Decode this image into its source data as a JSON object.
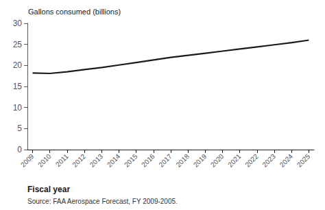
{
  "chart_data": {
    "type": "line",
    "ylabel": "Gallons consumed (billions)",
    "xlabel": "Fiscal year",
    "annotations": [
      "Source: FAA Aerospace Forecast, FY 2009-2005."
    ],
    "x": [
      2009,
      2010,
      2011,
      2012,
      2013,
      2014,
      2015,
      2016,
      2017,
      2018,
      2019,
      2020,
      2021,
      2022,
      2023,
      2024,
      2025
    ],
    "values": [
      18.2,
      18.1,
      18.5,
      19.0,
      19.5,
      20.1,
      20.7,
      21.3,
      21.9,
      22.4,
      22.9,
      23.4,
      23.9,
      24.4,
      24.9,
      25.4,
      26.0
    ],
    "color": "#1a1a1a",
    "xlim": [
      2008.7,
      2025.3
    ],
    "xticks": [
      2009,
      2010,
      2011,
      2012,
      2013,
      2014,
      2015,
      2016,
      2017,
      2018,
      2019,
      2020,
      2021,
      2022,
      2023,
      2024,
      2025
    ],
    "ylim": [
      0,
      30
    ],
    "yticks": [
      0,
      5,
      10,
      15,
      20,
      25,
      30
    ],
    "grid": false
  }
}
